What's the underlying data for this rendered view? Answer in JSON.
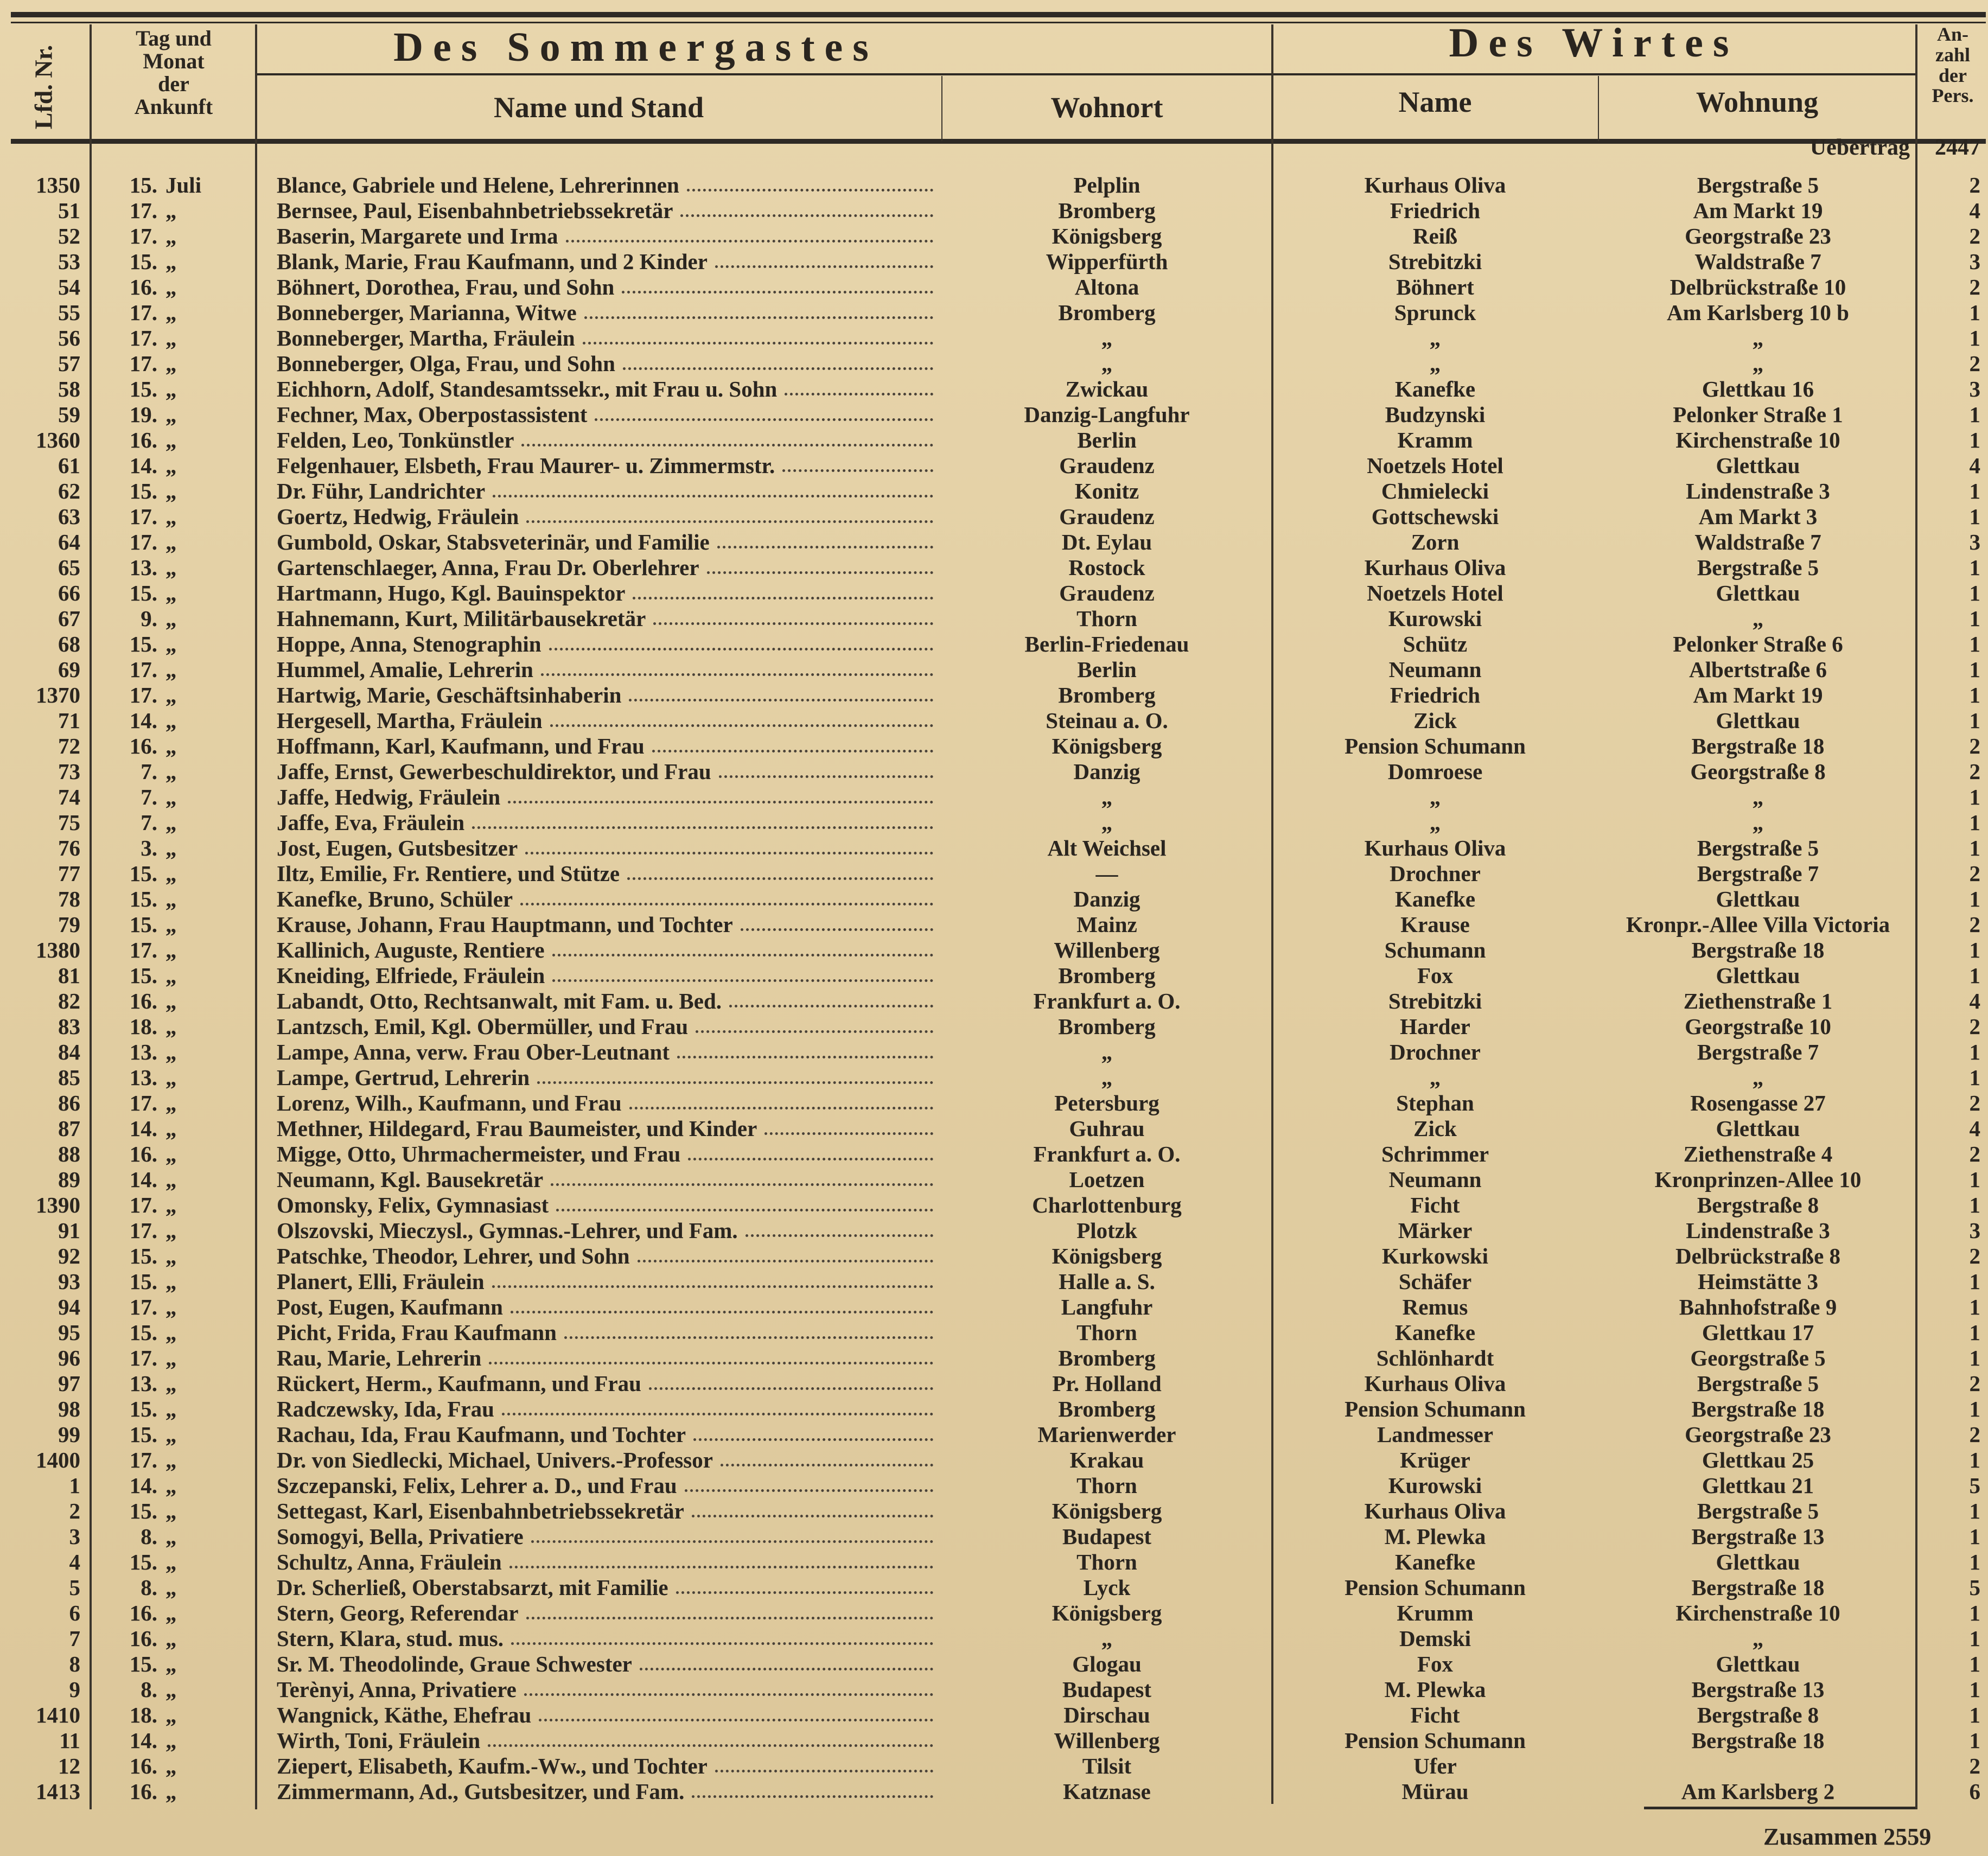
{
  "header": {
    "col_nr": "Lfd. Nr.",
    "col_date": [
      "Tag und",
      "Monat",
      "der",
      "Ankunft"
    ],
    "guest_group": "Des Sommergastes",
    "guest_name": "Name und Stand",
    "guest_residence": "Wohnort",
    "host_group": "Des Wirtes",
    "host_name": "Name",
    "host_address": "Wohnung",
    "persons": [
      "An-",
      "zahl",
      "der",
      "Pers."
    ]
  },
  "carry_over": {
    "label": "Uebertrag",
    "value": "2447"
  },
  "total": {
    "label": "Zusammen",
    "value": "2559"
  },
  "rows": [
    [
      "1350",
      "15.",
      "Juli",
      "Blance, Gabriele und Helene, Lehrerinnen",
      "Pelplin",
      "Kurhaus Oliva",
      "Bergstraße 5",
      "2"
    ],
    [
      "51",
      "17.",
      "„",
      "Bernsee, Paul, Eisenbahnbetriebssekretär",
      "Bromberg",
      "Friedrich",
      "Am Markt 19",
      "4"
    ],
    [
      "52",
      "17.",
      "„",
      "Baserin, Margarete und Irma",
      "Königsberg",
      "Reiß",
      "Georgstraße 23",
      "2"
    ],
    [
      "53",
      "15.",
      "„",
      "Blank, Marie, Frau Kaufmann, und 2 Kinder",
      "Wipperfürth",
      "Strebitzki",
      "Waldstraße 7",
      "3"
    ],
    [
      "54",
      "16.",
      "„",
      "Böhnert, Dorothea, Frau, und Sohn",
      "Altona",
      "Böhnert",
      "Delbrückstraße 10",
      "2"
    ],
    [
      "55",
      "17.",
      "„",
      "Bonneberger, Marianna, Witwe",
      "Bromberg",
      "Sprunck",
      "Am Karlsberg 10 b",
      "1"
    ],
    [
      "56",
      "17.",
      "„",
      "Bonneberger, Martha, Fräulein",
      "„",
      "„",
      "„",
      "1"
    ],
    [
      "57",
      "17.",
      "„",
      "Bonneberger, Olga, Frau, und Sohn",
      "„",
      "„",
      "„",
      "2"
    ],
    [
      "58",
      "15.",
      "„",
      "Eichhorn, Adolf, Standesamtssekr., mit Frau u. Sohn",
      "Zwickau",
      "Kanefke",
      "Glettkau 16",
      "3"
    ],
    [
      "59",
      "19.",
      "„",
      "Fechner, Max, Oberpostassistent",
      "Danzig-Langfuhr",
      "Budzynski",
      "Pelonker Straße 1",
      "1"
    ],
    [
      "1360",
      "16.",
      "„",
      "Felden, Leo, Tonkünstler",
      "Berlin",
      "Kramm",
      "Kirchenstraße 10",
      "1"
    ],
    [
      "61",
      "14.",
      "„",
      "Felgenhauer, Elsbeth, Frau Maurer- u. Zimmermstr.",
      "Graudenz",
      "Noetzels Hotel",
      "Glettkau",
      "4"
    ],
    [
      "62",
      "15.",
      "„",
      "Dr. Führ, Landrichter",
      "Konitz",
      "Chmielecki",
      "Lindenstraße 3",
      "1"
    ],
    [
      "63",
      "17.",
      "„",
      "Goertz, Hedwig, Fräulein",
      "Graudenz",
      "Gottschewski",
      "Am Markt 3",
      "1"
    ],
    [
      "64",
      "17.",
      "„",
      "Gumbold, Oskar, Stabsveterinär, und Familie",
      "Dt. Eylau",
      "Zorn",
      "Waldstraße 7",
      "3"
    ],
    [
      "65",
      "13.",
      "„",
      "Gartenschlaeger, Anna, Frau Dr. Oberlehrer",
      "Rostock",
      "Kurhaus Oliva",
      "Bergstraße 5",
      "1"
    ],
    [
      "66",
      "15.",
      "„",
      "Hartmann, Hugo, Kgl. Bauinspektor",
      "Graudenz",
      "Noetzels Hotel",
      "Glettkau",
      "1"
    ],
    [
      "67",
      "9.",
      "„",
      "Hahnemann, Kurt, Militärbausekretär",
      "Thorn",
      "Kurowski",
      "„",
      "1"
    ],
    [
      "68",
      "15.",
      "„",
      "Hoppe, Anna, Stenographin",
      "Berlin-Friedenau",
      "Schütz",
      "Pelonker Straße 6",
      "1"
    ],
    [
      "69",
      "17.",
      "„",
      "Hummel, Amalie, Lehrerin",
      "Berlin",
      "Neumann",
      "Albertstraße 6",
      "1"
    ],
    [
      "1370",
      "17.",
      "„",
      "Hartwig, Marie, Geschäftsinhaberin",
      "Bromberg",
      "Friedrich",
      "Am Markt 19",
      "1"
    ],
    [
      "71",
      "14.",
      "„",
      "Hergesell, Martha, Fräulein",
      "Steinau a. O.",
      "Zick",
      "Glettkau",
      "1"
    ],
    [
      "72",
      "16.",
      "„",
      "Hoffmann, Karl, Kaufmann, und Frau",
      "Königsberg",
      "Pension Schumann",
      "Bergstraße 18",
      "2"
    ],
    [
      "73",
      "7.",
      "„",
      "Jaffe, Ernst, Gewerbeschuldirektor, und Frau",
      "Danzig",
      "Domroese",
      "Georgstraße 8",
      "2"
    ],
    [
      "74",
      "7.",
      "„",
      "Jaffe, Hedwig, Fräulein",
      "„",
      "„",
      "„",
      "1"
    ],
    [
      "75",
      "7.",
      "„",
      "Jaffe, Eva, Fräulein",
      "„",
      "„",
      "„",
      "1"
    ],
    [
      "76",
      "3.",
      "„",
      "Jost, Eugen, Gutsbesitzer",
      "Alt Weichsel",
      "Kurhaus Oliva",
      "Bergstraße 5",
      "1"
    ],
    [
      "77",
      "15.",
      "„",
      "Iltz, Emilie, Fr. Rentiere, und Stütze",
      "—",
      "Drochner",
      "Bergstraße 7",
      "2"
    ],
    [
      "78",
      "15.",
      "„",
      "Kanefke, Bruno, Schüler",
      "Danzig",
      "Kanefke",
      "Glettkau",
      "1"
    ],
    [
      "79",
      "15.",
      "„",
      "Krause, Johann, Frau Hauptmann, und Tochter",
      "Mainz",
      "Krause",
      "Kronpr.-Allee Villa Victoria",
      "2"
    ],
    [
      "1380",
      "17.",
      "„",
      "Kallinich, Auguste, Rentiere",
      "Willenberg",
      "Schumann",
      "Bergstraße 18",
      "1"
    ],
    [
      "81",
      "15.",
      "„",
      "Kneiding, Elfriede, Fräulein",
      "Bromberg",
      "Fox",
      "Glettkau",
      "1"
    ],
    [
      "82",
      "16.",
      "„",
      "Labandt, Otto, Rechtsanwalt, mit Fam. u. Bed.",
      "Frankfurt a. O.",
      "Strebitzki",
      "Ziethenstraße 1",
      "4"
    ],
    [
      "83",
      "18.",
      "„",
      "Lantzsch, Emil, Kgl. Obermüller, und Frau",
      "Bromberg",
      "Harder",
      "Georgstraße 10",
      "2"
    ],
    [
      "84",
      "13.",
      "„",
      "Lampe, Anna, verw. Frau Ober-Leutnant",
      "„",
      "Drochner",
      "Bergstraße 7",
      "1"
    ],
    [
      "85",
      "13.",
      "„",
      "Lampe, Gertrud, Lehrerin",
      "„",
      "„",
      "„",
      "1"
    ],
    [
      "86",
      "17.",
      "„",
      "Lorenz, Wilh., Kaufmann, und Frau",
      "Petersburg",
      "Stephan",
      "Rosengasse 27",
      "2"
    ],
    [
      "87",
      "14.",
      "„",
      "Methner, Hildegard, Frau Baumeister, und Kinder",
      "Guhrau",
      "Zick",
      "Glettkau",
      "4"
    ],
    [
      "88",
      "16.",
      "„",
      "Migge, Otto, Uhrmachermeister, und Frau",
      "Frankfurt a. O.",
      "Schrimmer",
      "Ziethenstraße 4",
      "2"
    ],
    [
      "89",
      "14.",
      "„",
      "Neumann, Kgl. Bausekretär",
      "Loetzen",
      "Neumann",
      "Kronprinzen-Allee 10",
      "1"
    ],
    [
      "1390",
      "17.",
      "„",
      "Omonsky, Felix, Gymnasiast",
      "Charlottenburg",
      "Ficht",
      "Bergstraße 8",
      "1"
    ],
    [
      "91",
      "17.",
      "„",
      "Olszovski, Mieczysl., Gymnas.-Lehrer, und Fam.",
      "Plotzk",
      "Märker",
      "Lindenstraße 3",
      "3"
    ],
    [
      "92",
      "15.",
      "„",
      "Patschke, Theodor, Lehrer, und Sohn",
      "Königsberg",
      "Kurkowski",
      "Delbrückstraße 8",
      "2"
    ],
    [
      "93",
      "15.",
      "„",
      "Planert, Elli, Fräulein",
      "Halle a. S.",
      "Schäfer",
      "Heimstätte 3",
      "1"
    ],
    [
      "94",
      "17.",
      "„",
      "Post, Eugen, Kaufmann",
      "Langfuhr",
      "Remus",
      "Bahnhofstraße 9",
      "1"
    ],
    [
      "95",
      "15.",
      "„",
      "Picht, Frida, Frau Kaufmann",
      "Thorn",
      "Kanefke",
      "Glettkau 17",
      "1"
    ],
    [
      "96",
      "17.",
      "„",
      "Rau, Marie, Lehrerin",
      "Bromberg",
      "Schlönhardt",
      "Georgstraße 5",
      "1"
    ],
    [
      "97",
      "13.",
      "„",
      "Rückert, Herm., Kaufmann, und Frau",
      "Pr. Holland",
      "Kurhaus Oliva",
      "Bergstraße 5",
      "2"
    ],
    [
      "98",
      "15.",
      "„",
      "Radczewsky, Ida, Frau",
      "Bromberg",
      "Pension Schumann",
      "Bergstraße 18",
      "1"
    ],
    [
      "99",
      "15.",
      "„",
      "Rachau, Ida, Frau Kaufmann, und Tochter",
      "Marienwerder",
      "Landmesser",
      "Georgstraße 23",
      "2"
    ],
    [
      "1400",
      "17.",
      "„",
      "Dr. von Siedlecki, Michael, Univers.-Professor",
      "Krakau",
      "Krüger",
      "Glettkau 25",
      "1"
    ],
    [
      "1",
      "14.",
      "„",
      "Szczepanski, Felix, Lehrer a. D., und Frau",
      "Thorn",
      "Kurowski",
      "Glettkau 21",
      "5"
    ],
    [
      "2",
      "15.",
      "„",
      "Settegast, Karl, Eisenbahnbetriebssekretär",
      "Königsberg",
      "Kurhaus Oliva",
      "Bergstraße 5",
      "1"
    ],
    [
      "3",
      "8.",
      "„",
      "Somogyi, Bella, Privatiere",
      "Budapest",
      "M. Plewka",
      "Bergstraße 13",
      "1"
    ],
    [
      "4",
      "15.",
      "„",
      "Schultz, Anna, Fräulein",
      "Thorn",
      "Kanefke",
      "Glettkau",
      "1"
    ],
    [
      "5",
      "8.",
      "„",
      "Dr. Scherließ, Oberstabsarzt, mit Familie",
      "Lyck",
      "Pension Schumann",
      "Bergstraße 18",
      "5"
    ],
    [
      "6",
      "16.",
      "„",
      "Stern, Georg, Referendar",
      "Königsberg",
      "Krumm",
      "Kirchenstraße 10",
      "1"
    ],
    [
      "7",
      "16.",
      "„",
      "Stern, Klara, stud. mus.",
      "„",
      "Demski",
      "„",
      "1"
    ],
    [
      "8",
      "15.",
      "„",
      "Sr. M. Theodolinde, Graue Schwester",
      "Glogau",
      "Fox",
      "Glettkau",
      "1"
    ],
    [
      "9",
      "8.",
      "„",
      "Terènyi, Anna, Privatiere",
      "Budapest",
      "M. Plewka",
      "Bergstraße 13",
      "1"
    ],
    [
      "1410",
      "18.",
      "„",
      "Wangnick, Käthe, Ehefrau",
      "Dirschau",
      "Ficht",
      "Bergstraße 8",
      "1"
    ],
    [
      "11",
      "14.",
      "„",
      "Wirth, Toni, Fräulein",
      "Willenberg",
      "Pension Schumann",
      "Bergstraße 18",
      "1"
    ],
    [
      "12",
      "16.",
      "„",
      "Ziepert, Elisabeth, Kaufm.-Ww., und Tochter",
      "Tilsit",
      "Ufer",
      "",
      "2"
    ],
    [
      "1413",
      "16.",
      "„",
      "Zimmermann, Ad., Gutsbesitzer, und Fam.",
      "Katznase",
      "Mürau",
      "Am Karlsberg 2",
      "6"
    ]
  ]
}
